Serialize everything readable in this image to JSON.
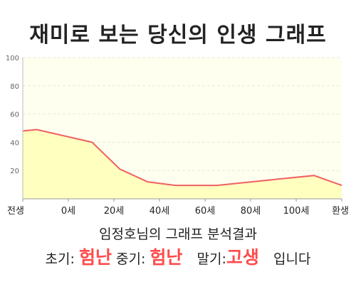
{
  "title": "재미로 보는 당신의 인생 그래프",
  "subtitle": "임정호님의 그래프 분석결과",
  "result": {
    "early_label": "초기:",
    "early_value": "험난",
    "mid_label": "중기:",
    "mid_value": "험난",
    "late_label": "말기:",
    "late_value": "고생",
    "suffix": "입니다"
  },
  "colors": {
    "line": "#f06060",
    "fill": "#ffffc0",
    "plot_bg": "#fffff0",
    "highlight": "#ff4b4b"
  },
  "chart_data": {
    "type": "area",
    "title": "재미로 보는 당신의 인생 그래프",
    "xlabel": "",
    "ylabel": "",
    "x_tick_labels": [
      "전생",
      "0세",
      "20세",
      "40세",
      "60세",
      "80세",
      "100세",
      "환생"
    ],
    "y_ticks": [
      20,
      40,
      60,
      80,
      100
    ],
    "ylim": [
      0,
      100
    ],
    "grid": true,
    "x": [
      -5,
      0,
      20,
      30,
      40,
      50,
      65,
      80,
      100,
      110
    ],
    "values": [
      48,
      49,
      40,
      21,
      12,
      9.5,
      9.5,
      12.5,
      16.5,
      9.5
    ]
  }
}
